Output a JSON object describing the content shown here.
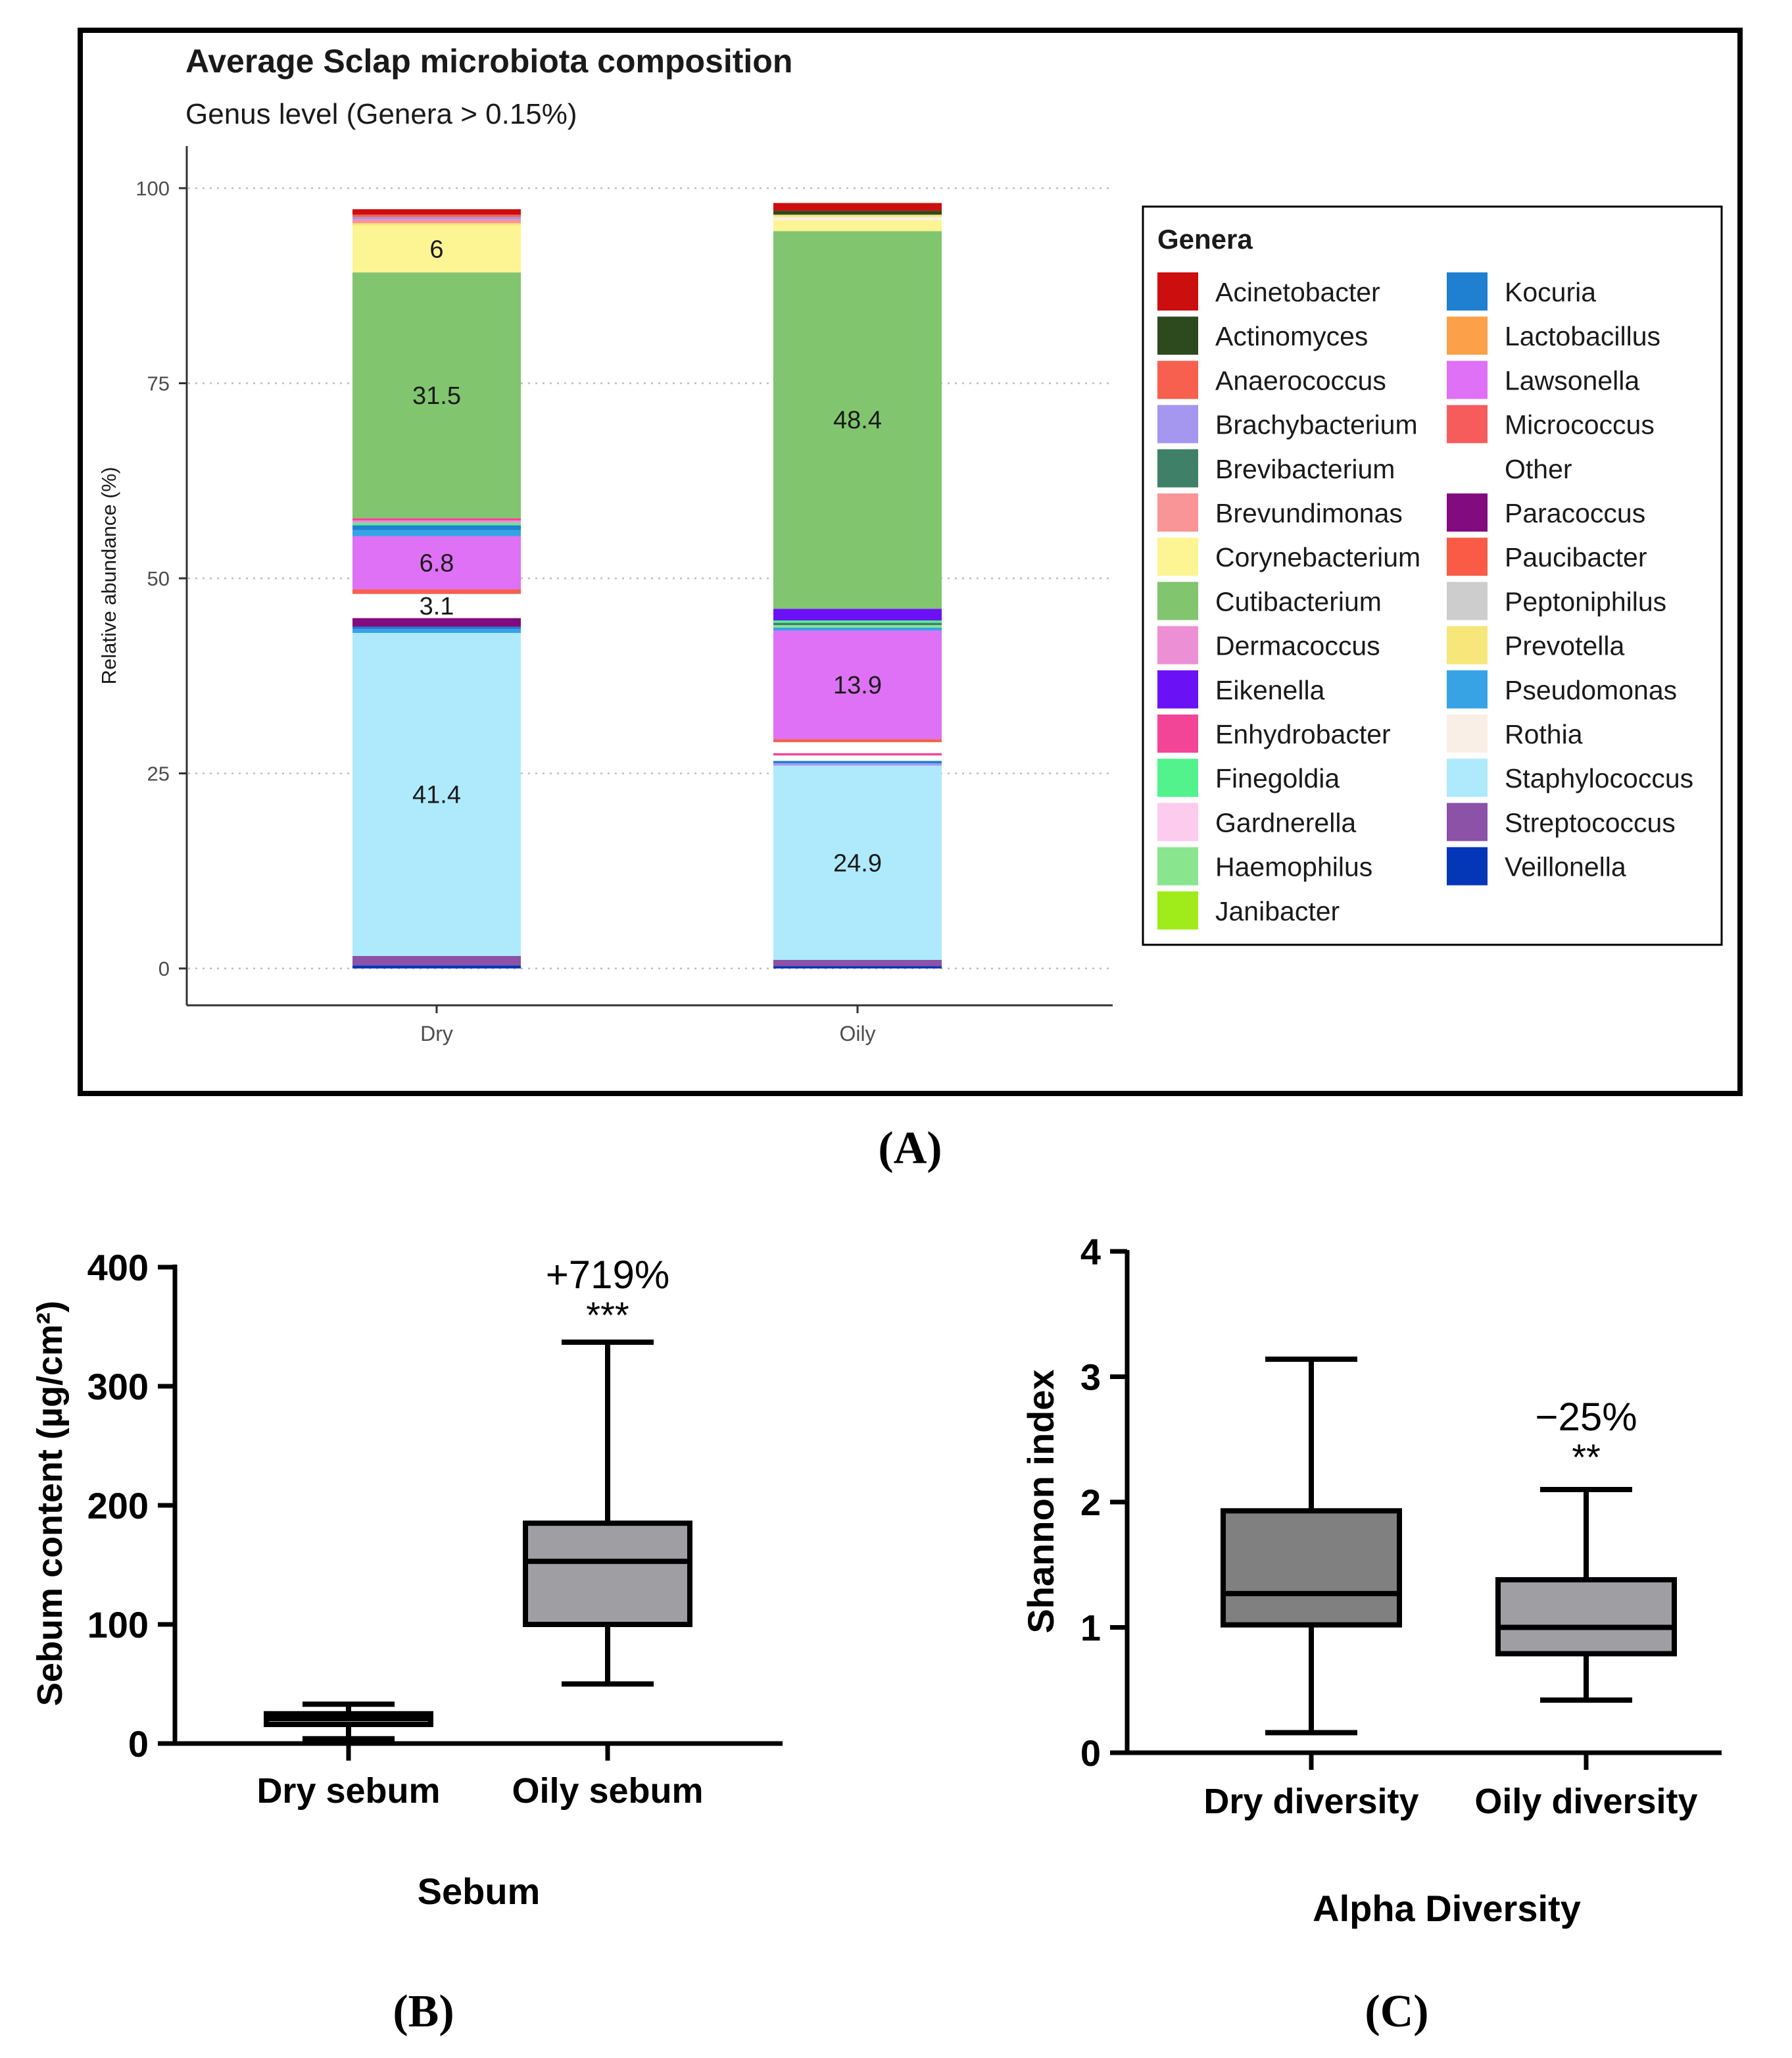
{
  "panel_a": {
    "caption": "(A)",
    "chart_data": {
      "type": "bar",
      "stacked": true,
      "title": "Average Sclap microbiota composition",
      "subtitle": "Genus level (Genera > 0.15%)",
      "ylabel": "Relative abundance (%)",
      "xlabel": "",
      "ylim": [
        0,
        100
      ],
      "yticks": [
        "0",
        "25",
        "50",
        "75",
        "100"
      ],
      "categories": [
        "Dry",
        "Oily"
      ],
      "grid": "horizontal dotted",
      "legend_position": "right",
      "legend_title": "Genera",
      "legend": [
        {
          "name": "Acinetobacter",
          "color": "#cc0e0e"
        },
        {
          "name": "Actinomyces",
          "color": "#2d4a1e"
        },
        {
          "name": "Anaerococcus",
          "color": "#f7604f"
        },
        {
          "name": "Brachybacterium",
          "color": "#a596f0"
        },
        {
          "name": "Brevibacterium",
          "color": "#3f8068"
        },
        {
          "name": "Brevundimonas",
          "color": "#f99597"
        },
        {
          "name": "Corynebacterium",
          "color": "#fdf493"
        },
        {
          "name": "Cutibacterium",
          "color": "#81c56e"
        },
        {
          "name": "Dermacoccus",
          "color": "#ec8fd4"
        },
        {
          "name": "Eikenella",
          "color": "#6b11f5"
        },
        {
          "name": "Enhydrobacter",
          "color": "#f24598"
        },
        {
          "name": "Finegoldia",
          "color": "#52f28c"
        },
        {
          "name": "Gardnerella",
          "color": "#fccbed"
        },
        {
          "name": "Haemophilus",
          "color": "#8ae58f"
        },
        {
          "name": "Janibacter",
          "color": "#a0ec1a"
        },
        {
          "name": "Kocuria",
          "color": "#1f80d2"
        },
        {
          "name": "Lactobacillus",
          "color": "#fda04a"
        },
        {
          "name": "Lawsonella",
          "color": "#df71f6"
        },
        {
          "name": "Micrococcus",
          "color": "#f75c5c"
        },
        {
          "name": "Other",
          "color": "#ffffff"
        },
        {
          "name": "Paracoccus",
          "color": "#820b80"
        },
        {
          "name": "Paucibacter",
          "color": "#f95b46"
        },
        {
          "name": "Peptoniphilus",
          "color": "#cdcdcd"
        },
        {
          "name": "Prevotella",
          "color": "#f7e77a"
        },
        {
          "name": "Pseudomonas",
          "color": "#37a3e5"
        },
        {
          "name": "Rothia",
          "color": "#faefe7"
        },
        {
          "name": "Staphylococcus",
          "color": "#aeeafb"
        },
        {
          "name": "Streptococcus",
          "color": "#8b52a8"
        },
        {
          "name": "Veillonella",
          "color": "#0436b8"
        }
      ],
      "series": [
        {
          "category": "Dry",
          "segments": [
            {
              "genus": "Veillonella",
              "value": 0.4
            },
            {
              "genus": "Streptococcus",
              "value": 1.2
            },
            {
              "genus": "Staphylococcus",
              "value": 41.4,
              "label": "41.4"
            },
            {
              "genus": "Pseudomonas",
              "value": 0.5
            },
            {
              "genus": "Kocuria",
              "value": 0.3
            },
            {
              "genus": "Paracoccus",
              "value": 1.1
            },
            {
              "genus": "Other",
              "value": 3.1,
              "label": "3.1"
            },
            {
              "genus": "Anaerococcus",
              "value": 0.6
            },
            {
              "genus": "Lawsonella",
              "value": 6.8,
              "label": "6.8"
            },
            {
              "genus": "Pseudomonas",
              "value": 0.8
            },
            {
              "genus": "Kocuria",
              "value": 0.6
            },
            {
              "genus": "Finegoldia",
              "value": 0.3
            },
            {
              "genus": "Dermacoccus",
              "value": 0.3
            },
            {
              "genus": "Enhydrobacter",
              "value": 0.3
            },
            {
              "genus": "Cutibacterium",
              "value": 31.5,
              "label": "31.5"
            },
            {
              "genus": "Corynebacterium",
              "value": 6.0,
              "label": "6"
            },
            {
              "genus": "Prevotella",
              "value": 0.3
            },
            {
              "genus": "Brevundimonas",
              "value": 0.5
            },
            {
              "genus": "Brachybacterium",
              "value": 0.3
            },
            {
              "genus": "Anaerococcus",
              "value": 0.3
            },
            {
              "genus": "Acinetobacter",
              "value": 0.7
            }
          ]
        },
        {
          "category": "Oily",
          "segments": [
            {
              "genus": "Veillonella",
              "value": 0.3
            },
            {
              "genus": "Streptococcus",
              "value": 0.8
            },
            {
              "genus": "Staphylococcus",
              "value": 24.9,
              "label": "24.9"
            },
            {
              "genus": "Brachybacterium",
              "value": 0.3
            },
            {
              "genus": "Kocuria",
              "value": 0.3
            },
            {
              "genus": "Other",
              "value": 0.7
            },
            {
              "genus": "Enhydrobacter",
              "value": 0.3
            },
            {
              "genus": "Other",
              "value": 1.4
            },
            {
              "genus": "Anaerococcus",
              "value": 0.4
            },
            {
              "genus": "Lawsonella",
              "value": 13.9,
              "label": "13.9"
            },
            {
              "genus": "Pseudomonas",
              "value": 0.4
            },
            {
              "genus": "Haemophilus",
              "value": 0.3
            },
            {
              "genus": "Brevibacterium",
              "value": 0.3
            },
            {
              "genus": "Finegoldia",
              "value": 0.3
            },
            {
              "genus": "Eikenella",
              "value": 1.5
            },
            {
              "genus": "Cutibacterium",
              "value": 48.4,
              "label": "48.4"
            },
            {
              "genus": "Corynebacterium",
              "value": 1.4
            },
            {
              "genus": "Rothia",
              "value": 0.4
            },
            {
              "genus": "Prevotella",
              "value": 0.3
            },
            {
              "genus": "Actinomyces",
              "value": 0.5
            },
            {
              "genus": "Acinetobacter",
              "value": 1.0
            }
          ]
        }
      ]
    }
  },
  "panel_b": {
    "caption": "(B)",
    "chart_data": {
      "type": "box",
      "title": "",
      "xlabel": "Sebum",
      "ylabel": "Sebum content (µg/cm²)",
      "ylim": [
        0,
        400
      ],
      "yticks": [
        "0",
        "100",
        "200",
        "300",
        "400"
      ],
      "categories": [
        "Dry sebum",
        "Oily sebum"
      ],
      "boxes": [
        {
          "name": "Dry sebum",
          "min": 4,
          "q1": 16,
          "median": 21,
          "q3": 25,
          "max": 33,
          "color": "#9e9ea3"
        },
        {
          "name": "Oily sebum",
          "min": 50,
          "q1": 100,
          "median": 153,
          "q3": 185,
          "max": 337,
          "color": "#9e9ea3"
        }
      ],
      "annotations": [
        {
          "category": "Oily sebum",
          "text": "+719%"
        },
        {
          "category": "Oily sebum",
          "text": "***"
        }
      ]
    }
  },
  "panel_c": {
    "caption": "(C)",
    "chart_data": {
      "type": "box",
      "title": "",
      "xlabel": "Alpha Diversity",
      "ylabel": "Shannon index",
      "ylim": [
        0,
        4
      ],
      "yticks": [
        "0",
        "1",
        "2",
        "3",
        "4"
      ],
      "categories": [
        "Dry diversity",
        "Oily diversity"
      ],
      "boxes": [
        {
          "name": "Dry diversity",
          "min": 0.16,
          "q1": 1.02,
          "median": 1.27,
          "q3": 1.93,
          "max": 3.14,
          "color": "#808080"
        },
        {
          "name": "Oily diversity",
          "min": 0.42,
          "q1": 0.79,
          "median": 1.0,
          "q3": 1.38,
          "max": 2.1,
          "color": "#9e9ea3"
        }
      ],
      "annotations": [
        {
          "category": "Oily diversity",
          "text": "−25%"
        },
        {
          "category": "Oily diversity",
          "text": "**"
        }
      ]
    }
  }
}
